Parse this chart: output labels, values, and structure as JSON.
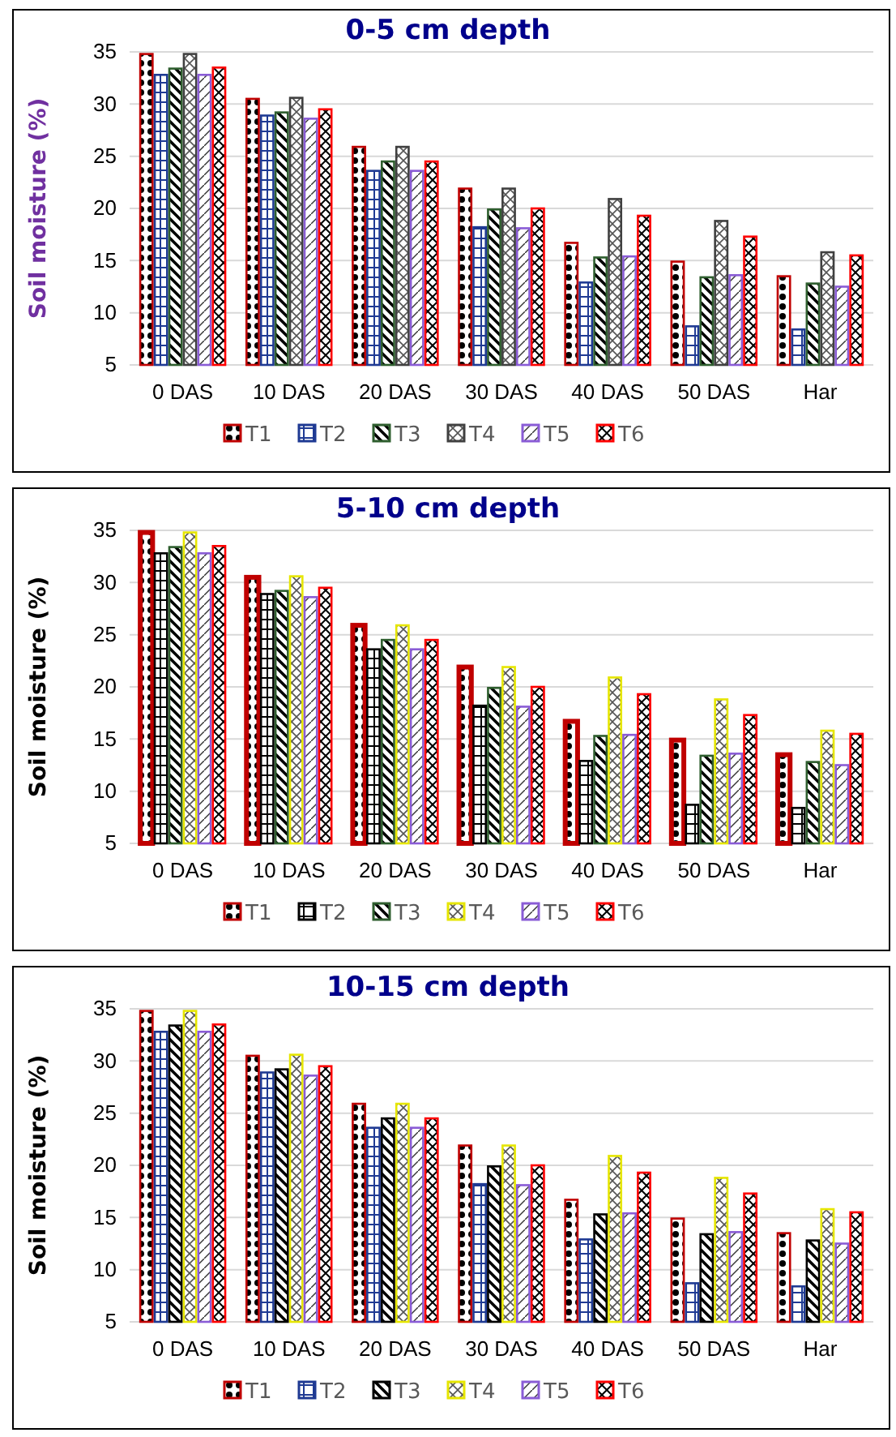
{
  "chart_data": [
    {
      "type": "bar",
      "title": "0-5 cm depth",
      "ylabel": "Soil moisture (%)",
      "categories": [
        "0 DAS",
        "10 DAS",
        "20 DAS",
        "30 DAS",
        "40 DAS",
        "50 DAS",
        "Har"
      ],
      "ylim": [
        5,
        35
      ],
      "yticks": [
        5,
        10,
        15,
        20,
        25,
        30,
        35
      ],
      "grid": "y",
      "legend": "bottom",
      "series": [
        {
          "name": "T1",
          "color": "#c00000",
          "values": [
            34.8,
            30.5,
            25.9,
            21.9,
            16.7,
            14.9,
            13.5
          ]
        },
        {
          "name": "T2",
          "color": "#1f3a93",
          "values": [
            32.8,
            28.9,
            23.6,
            18.2,
            12.9,
            8.7,
            8.4
          ]
        },
        {
          "name": "T3",
          "color": "#2e5e2e",
          "values": [
            33.4,
            29.2,
            24.5,
            19.9,
            15.3,
            13.4,
            12.8
          ]
        },
        {
          "name": "T4",
          "color": "#404040",
          "values": [
            34.8,
            30.6,
            25.9,
            21.9,
            20.9,
            18.8,
            15.8
          ]
        },
        {
          "name": "T5",
          "color": "#8a5cd6",
          "values": [
            32.8,
            28.6,
            23.6,
            18.1,
            15.4,
            13.6,
            12.5
          ]
        },
        {
          "name": "T6",
          "color": "#ff0000",
          "values": [
            33.5,
            29.5,
            24.5,
            20.0,
            19.3,
            17.3,
            15.5
          ]
        }
      ]
    },
    {
      "type": "bar",
      "title": "5-10 cm depth",
      "ylabel": "Soil moisture (%)",
      "categories": [
        "0 DAS",
        "10 DAS",
        "20 DAS",
        "30 DAS",
        "40 DAS",
        "50 DAS",
        "Har"
      ],
      "ylim": [
        5,
        35
      ],
      "yticks": [
        5,
        10,
        15,
        20,
        25,
        30,
        35
      ],
      "grid": "y",
      "legend": "bottom",
      "series": [
        {
          "name": "T1",
          "color": "#c00000",
          "values": [
            34.8,
            30.5,
            25.9,
            21.9,
            16.7,
            14.9,
            13.5
          ]
        },
        {
          "name": "T2",
          "color": "#000000",
          "values": [
            32.8,
            28.9,
            23.6,
            18.2,
            12.9,
            8.7,
            8.4
          ]
        },
        {
          "name": "T3",
          "color": "#2e5e2e",
          "values": [
            33.4,
            29.2,
            24.5,
            19.9,
            15.3,
            13.4,
            12.8
          ]
        },
        {
          "name": "T4",
          "color": "#e6e600",
          "values": [
            34.8,
            30.6,
            25.9,
            21.9,
            20.9,
            18.8,
            15.8
          ]
        },
        {
          "name": "T5",
          "color": "#8a5cd6",
          "values": [
            32.8,
            28.6,
            23.6,
            18.1,
            15.4,
            13.6,
            12.5
          ]
        },
        {
          "name": "T6",
          "color": "#ff0000",
          "values": [
            33.5,
            29.5,
            24.5,
            20.0,
            19.3,
            17.3,
            15.5
          ]
        }
      ]
    },
    {
      "type": "bar",
      "title": "10-15 cm depth",
      "ylabel": "Soil moisture (%)",
      "categories": [
        "0 DAS",
        "10 DAS",
        "20 DAS",
        "30 DAS",
        "40 DAS",
        "50 DAS",
        "Har"
      ],
      "ylim": [
        5,
        35
      ],
      "yticks": [
        5,
        10,
        15,
        20,
        25,
        30,
        35
      ],
      "grid": "y",
      "legend": "bottom",
      "series": [
        {
          "name": "T1",
          "color": "#c00000",
          "values": [
            34.8,
            30.5,
            25.9,
            21.9,
            16.7,
            14.9,
            13.5
          ]
        },
        {
          "name": "T2",
          "color": "#1f3a93",
          "values": [
            32.8,
            28.9,
            23.6,
            18.2,
            12.9,
            8.7,
            8.4
          ]
        },
        {
          "name": "T3",
          "color": "#000000",
          "values": [
            33.4,
            29.2,
            24.5,
            19.9,
            15.3,
            13.4,
            12.8
          ]
        },
        {
          "name": "T4",
          "color": "#e6e600",
          "values": [
            34.8,
            30.6,
            25.9,
            21.9,
            20.9,
            18.8,
            15.8
          ]
        },
        {
          "name": "T5",
          "color": "#8a5cd6",
          "values": [
            32.8,
            28.6,
            23.6,
            18.1,
            15.4,
            13.6,
            12.5
          ]
        },
        {
          "name": "T6",
          "color": "#ff0000",
          "values": [
            33.5,
            29.5,
            24.5,
            20.0,
            19.3,
            17.3,
            15.5
          ]
        }
      ]
    }
  ]
}
